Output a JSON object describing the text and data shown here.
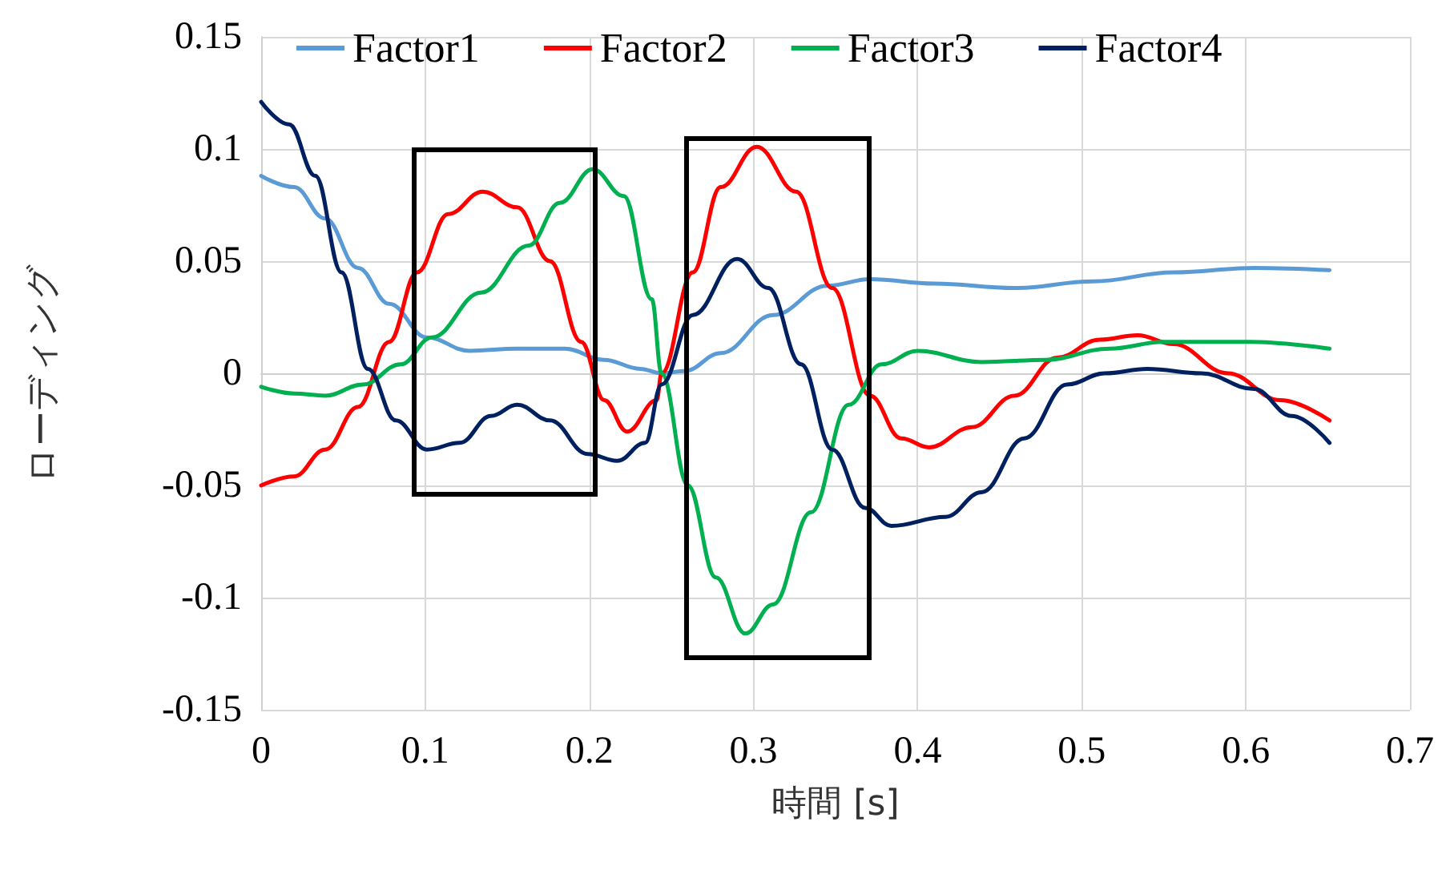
{
  "chart_data": {
    "type": "line",
    "xlabel": "時間 [s]",
    "ylabel": "ローディング",
    "xlim": [
      0,
      0.7
    ],
    "xticks": [
      0,
      0.1,
      0.2,
      0.3,
      0.4,
      0.5,
      0.6,
      0.7
    ],
    "ylim": [
      -0.15,
      0.15
    ],
    "yticks": [
      -0.15,
      -0.1,
      -0.05,
      0,
      0.05,
      0.1,
      0.15
    ],
    "grid": true,
    "legend": "top",
    "marker": "none",
    "line_style": "solid",
    "series": [
      {
        "name": "Factor1",
        "color": "#5b9bd5",
        "x": [
          0,
          0.02,
          0.039,
          0.059,
          0.078,
          0.101,
          0.127,
          0.156,
          0.185,
          0.209,
          0.231,
          0.244,
          0.258,
          0.28,
          0.312,
          0.345,
          0.371,
          0.41,
          0.459,
          0.507,
          0.556,
          0.605,
          0.651
        ],
        "values": [
          0.088,
          0.083,
          0.069,
          0.047,
          0.031,
          0.016,
          0.01,
          0.011,
          0.011,
          0.006,
          0.002,
          0,
          0.001,
          0.009,
          0.026,
          0.039,
          0.042,
          0.04,
          0.038,
          0.041,
          0.045,
          0.047,
          0.046
        ]
      },
      {
        "name": "Factor2",
        "color": "#ff0000",
        "x": [
          0,
          0.02,
          0.039,
          0.059,
          0.078,
          0.095,
          0.114,
          0.135,
          0.156,
          0.176,
          0.195,
          0.209,
          0.223,
          0.241,
          0.244,
          0.263,
          0.28,
          0.302,
          0.326,
          0.348,
          0.371,
          0.39,
          0.407,
          0.433,
          0.459,
          0.485,
          0.511,
          0.534,
          0.556,
          0.589,
          0.621,
          0.651
        ],
        "values": [
          -0.05,
          -0.046,
          -0.034,
          -0.015,
          0.014,
          0.045,
          0.071,
          0.081,
          0.074,
          0.05,
          0.014,
          -0.012,
          -0.026,
          -0.012,
          0,
          0.045,
          0.083,
          0.101,
          0.081,
          0.038,
          -0.01,
          -0.029,
          -0.033,
          -0.024,
          -0.01,
          0.007,
          0.015,
          0.017,
          0.013,
          0,
          -0.012,
          -0.021
        ]
      },
      {
        "name": "Factor3",
        "color": "#00b050",
        "x": [
          0,
          0.02,
          0.039,
          0.062,
          0.085,
          0.104,
          0.134,
          0.163,
          0.182,
          0.202,
          0.221,
          0.238,
          0.244,
          0.26,
          0.277,
          0.295,
          0.312,
          0.335,
          0.358,
          0.378,
          0.4,
          0.439,
          0.478,
          0.517,
          0.55,
          0.602,
          0.651
        ],
        "values": [
          -0.006,
          -0.009,
          -0.01,
          -0.005,
          0.004,
          0.016,
          0.036,
          0.057,
          0.076,
          0.091,
          0.079,
          0.033,
          0,
          -0.05,
          -0.091,
          -0.116,
          -0.103,
          -0.062,
          -0.014,
          0.004,
          0.01,
          0.005,
          0.006,
          0.011,
          0.014,
          0.014,
          0.011
        ]
      },
      {
        "name": "Factor4",
        "color": "#002060",
        "x": [
          0,
          0.017,
          0.033,
          0.049,
          0.065,
          0.082,
          0.101,
          0.121,
          0.14,
          0.156,
          0.176,
          0.199,
          0.217,
          0.234,
          0.244,
          0.263,
          0.29,
          0.309,
          0.329,
          0.348,
          0.368,
          0.384,
          0.417,
          0.439,
          0.465,
          0.491,
          0.514,
          0.54,
          0.573,
          0.605,
          0.628,
          0.651
        ],
        "values": [
          0.121,
          0.111,
          0.088,
          0.045,
          0.002,
          -0.021,
          -0.034,
          -0.031,
          -0.019,
          -0.014,
          -0.021,
          -0.036,
          -0.039,
          -0.031,
          -0.005,
          0.026,
          0.051,
          0.038,
          0.004,
          -0.034,
          -0.06,
          -0.068,
          -0.064,
          -0.053,
          -0.029,
          -0.005,
          0,
          0.002,
          0,
          -0.007,
          -0.019,
          -0.031
        ]
      }
    ]
  }
}
